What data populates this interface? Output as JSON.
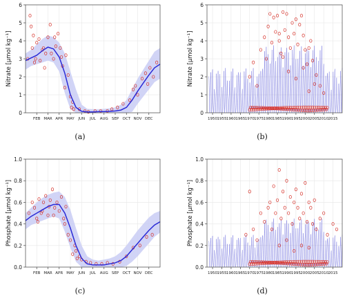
{
  "colors": {
    "band": "#c9cdf4",
    "line": "#2a2ad6",
    "points": "#d6322a",
    "grid": "#e6e6e6",
    "axis": "#444444",
    "ts_line": "#5a5ad8"
  },
  "chart_data": [
    {
      "id": "a",
      "type": "line",
      "caption": "(a)",
      "ylabel": "Nitrate [μmol kg⁻¹]",
      "ylim": [
        0,
        6
      ],
      "yticks": [
        0,
        1,
        2,
        3,
        4,
        5,
        6
      ],
      "xlim": [
        0,
        12
      ],
      "xtick_positions": [
        1,
        2,
        3,
        4,
        5,
        6,
        7,
        8,
        9,
        10,
        11
      ],
      "xtick_labels": [
        "FEB",
        "MAR",
        "APR",
        "MAY",
        "JUN",
        "JUL",
        "AUG",
        "SEP",
        "OCT",
        "NOV",
        "DEC"
      ],
      "mean": {
        "x": [
          0,
          0.5,
          1,
          1.5,
          2,
          2.5,
          3,
          3.5,
          4,
          4.5,
          5,
          5.5,
          6,
          6.5,
          7,
          7.5,
          8,
          8.5,
          9,
          9.5,
          10,
          10.5,
          11,
          11.5,
          12
        ],
        "y": [
          2.9,
          3.05,
          3.2,
          3.45,
          3.65,
          3.55,
          3.1,
          2.2,
          1.0,
          0.3,
          0.08,
          0.05,
          0.05,
          0.06,
          0.07,
          0.08,
          0.1,
          0.15,
          0.3,
          0.7,
          1.2,
          1.65,
          2.1,
          2.5,
          2.7
        ]
      },
      "band_upper": [
        3.3,
        3.5,
        3.8,
        4.1,
        4.3,
        4.2,
        3.9,
        3.3,
        2.3,
        1.3,
        0.45,
        0.22,
        0.2,
        0.2,
        0.22,
        0.25,
        0.3,
        0.45,
        0.7,
        1.3,
        1.9,
        2.4,
        2.9,
        3.4,
        3.6
      ],
      "band_lower": [
        2.4,
        2.6,
        2.7,
        2.8,
        2.9,
        2.8,
        2.3,
        1.1,
        0.2,
        0.0,
        0.0,
        0.0,
        0.0,
        0.0,
        0.0,
        0.0,
        0.0,
        0.0,
        0.0,
        0.05,
        0.5,
        0.9,
        1.3,
        1.7,
        1.9
      ],
      "points": {
        "x": [
          0.2,
          0.4,
          0.6,
          0.8,
          0.7,
          1.0,
          1.2,
          1.3,
          1.5,
          1.6,
          1.8,
          2.0,
          2.2,
          2.3,
          2.5,
          2.7,
          2.9,
          3.1,
          3.3,
          3.5,
          3.6,
          3.8,
          4.0,
          4.1,
          4.3,
          4.2,
          0.5,
          0.9,
          1.7,
          2.6,
          3.2,
          4.8,
          5.3,
          5.6,
          6.2,
          6.7,
          7.3,
          7.7,
          8.2,
          8.7,
          9.3,
          9.6,
          10.0,
          10.4,
          10.7,
          11.1,
          11.4,
          11.7,
          10.9,
          9.8
        ],
        "y": [
          3.0,
          5.4,
          3.6,
          2.8,
          4.3,
          3.9,
          4.1,
          2.9,
          3.5,
          3.6,
          3.3,
          4.2,
          4.9,
          3.3,
          3.0,
          3.7,
          4.4,
          3.6,
          2.6,
          1.4,
          3.2,
          2.1,
          0.9,
          0.3,
          0.2,
          0.6,
          4.8,
          3.0,
          2.5,
          4.2,
          3.1,
          0.2,
          0.1,
          0.05,
          0.1,
          0.1,
          0.1,
          0.2,
          0.3,
          0.5,
          0.7,
          1.3,
          1.0,
          1.9,
          2.2,
          2.5,
          2.0,
          2.8,
          1.6,
          1.5
        ]
      }
    },
    {
      "id": "b",
      "type": "line",
      "caption": "(b)",
      "ylabel": "Nitrate [μmol kg⁻¹]",
      "ylim": [
        0,
        6
      ],
      "yticks": [
        0,
        1,
        2,
        3,
        4,
        5,
        6
      ],
      "xlim": [
        1947,
        2020
      ],
      "xtick_positions": [
        1950,
        1955,
        1960,
        1965,
        1970,
        1975,
        1980,
        1985,
        1990,
        1995,
        2000,
        2005,
        2010,
        2015
      ],
      "xtick_labels": [
        "1950",
        "1955",
        "1960",
        "1965",
        "1970",
        "1975",
        "1980",
        "1985",
        "1990",
        "1995",
        "2000",
        "2005",
        "2010",
        "2015"
      ],
      "seasonal_peak": 2.5,
      "series_start": 1948,
      "series_end": 2020,
      "points": {
        "x": [
          1970,
          1972,
          1974,
          1976,
          1978,
          1980,
          1981,
          1982,
          1983,
          1984,
          1985,
          1986,
          1987,
          1988,
          1989,
          1990,
          1991,
          1992,
          1993,
          1994,
          1995,
          1996,
          1997,
          1998,
          1999,
          2000,
          2001,
          2002,
          2003,
          2004,
          2005,
          2006,
          2008,
          2010,
          1979,
          1986,
          1988,
          1991,
          1995,
          1999,
          2002
        ],
        "y": [
          2.0,
          2.8,
          1.5,
          3.5,
          4.2,
          4.8,
          5.5,
          3.9,
          5.3,
          4.5,
          5.4,
          4.0,
          3.3,
          5.6,
          4.6,
          5.5,
          4.2,
          3.6,
          5.0,
          4.4,
          5.2,
          3.8,
          4.9,
          5.4,
          4.3,
          3.5,
          2.7,
          3.6,
          4.0,
          2.9,
          1.6,
          2.1,
          1.5,
          1.1,
          3.0,
          4.4,
          3.1,
          2.3,
          1.9,
          2.5,
          1.2
        ]
      }
    },
    {
      "id": "c",
      "type": "line",
      "caption": "(c)",
      "ylabel": "Phosphate [μmol kg⁻¹]",
      "ylim": [
        0,
        1
      ],
      "yticks": [
        0.0,
        0.2,
        0.4,
        0.6,
        0.8,
        1.0
      ],
      "xlim": [
        0,
        12
      ],
      "xtick_positions": [
        1,
        2,
        3,
        4,
        5,
        6,
        7,
        8,
        9,
        10,
        11
      ],
      "xtick_labels": [
        "FEB",
        "MAR",
        "APR",
        "MAY",
        "JUN",
        "JUL",
        "AUG",
        "SEP",
        "OCT",
        "NOV",
        "DEC"
      ],
      "mean": {
        "x": [
          0,
          0.5,
          1,
          1.5,
          2,
          2.5,
          3,
          3.5,
          4,
          4.5,
          5,
          5.5,
          6,
          6.5,
          7,
          7.5,
          8,
          8.5,
          9,
          9.5,
          10,
          10.5,
          11,
          11.5,
          12
        ],
        "y": [
          0.43,
          0.47,
          0.5,
          0.53,
          0.56,
          0.58,
          0.58,
          0.5,
          0.36,
          0.2,
          0.08,
          0.03,
          0.02,
          0.02,
          0.02,
          0.03,
          0.04,
          0.06,
          0.1,
          0.16,
          0.22,
          0.28,
          0.34,
          0.39,
          0.42
        ]
      },
      "band_upper": [
        0.5,
        0.55,
        0.6,
        0.64,
        0.67,
        0.69,
        0.7,
        0.65,
        0.53,
        0.36,
        0.2,
        0.1,
        0.07,
        0.06,
        0.07,
        0.08,
        0.1,
        0.14,
        0.2,
        0.27,
        0.34,
        0.4,
        0.46,
        0.5,
        0.52
      ],
      "band_lower": [
        0.35,
        0.39,
        0.41,
        0.43,
        0.45,
        0.47,
        0.45,
        0.33,
        0.18,
        0.05,
        0.0,
        0.0,
        0.0,
        0.0,
        0.0,
        0.0,
        0.0,
        0.0,
        0.01,
        0.05,
        0.1,
        0.16,
        0.22,
        0.28,
        0.32
      ],
      "points": {
        "x": [
          0.3,
          0.6,
          0.8,
          1.0,
          1.2,
          1.4,
          1.6,
          1.8,
          2.0,
          2.2,
          2.4,
          2.6,
          2.8,
          3.0,
          3.2,
          3.4,
          3.6,
          3.8,
          4.0,
          4.2,
          4.4,
          4.6,
          4.8,
          5.0,
          5.4,
          5.8,
          6.3,
          6.8,
          7.3,
          7.8,
          8.4,
          9.0,
          9.6,
          10.2,
          10.8,
          11.3,
          1.5,
          2.5,
          3.5,
          4.5,
          1.1,
          2.1
        ],
        "y": [
          0.5,
          0.6,
          0.55,
          0.45,
          0.63,
          0.5,
          0.6,
          0.66,
          0.48,
          0.62,
          0.72,
          0.55,
          0.6,
          0.52,
          0.65,
          0.45,
          0.56,
          0.3,
          0.25,
          0.12,
          0.2,
          0.08,
          0.1,
          0.07,
          0.05,
          0.04,
          0.03,
          0.03,
          0.04,
          0.03,
          0.05,
          0.1,
          0.18,
          0.2,
          0.28,
          0.3,
          0.52,
          0.48,
          0.4,
          0.15,
          0.42,
          0.56
        ]
      }
    },
    {
      "id": "d",
      "type": "line",
      "caption": "(d)",
      "ylabel": "Phosphate [μmol kg⁻¹]",
      "ylim": [
        0,
        1
      ],
      "yticks": [
        0.0,
        0.2,
        0.4,
        0.6,
        0.8,
        1.0
      ],
      "xlim": [
        1947,
        2020
      ],
      "xtick_positions": [
        1950,
        1955,
        1960,
        1965,
        1970,
        1975,
        1980,
        1985,
        1990,
        1995,
        2000,
        2005,
        2010,
        2015
      ],
      "xtick_labels": [
        "1950",
        "1955",
        "1960",
        "1965",
        "1970",
        "1975",
        "1980",
        "1985",
        "1990",
        "1995",
        "2000",
        "2005",
        "2010",
        "2015"
      ],
      "seasonal_peak": 0.3,
      "series_start": 1948,
      "series_end": 2020,
      "points": {
        "x": [
          1968,
          1970,
          1972,
          1974,
          1976,
          1978,
          1980,
          1981,
          1982,
          1983,
          1984,
          1985,
          1986,
          1987,
          1988,
          1989,
          1990,
          1991,
          1992,
          1993,
          1994,
          1995,
          1996,
          1997,
          1998,
          1999,
          2000,
          2001,
          2002,
          2003,
          2004,
          2005,
          2006,
          2008,
          2010,
          2012,
          2015,
          2017,
          1986,
          1990,
          1994,
          1998,
          2002
        ],
        "y": [
          0.3,
          0.7,
          0.35,
          0.25,
          0.5,
          0.42,
          0.55,
          0.6,
          0.35,
          0.75,
          0.5,
          0.62,
          0.9,
          0.45,
          0.7,
          0.55,
          0.8,
          0.5,
          0.65,
          0.4,
          0.6,
          0.72,
          0.55,
          0.45,
          0.68,
          0.5,
          0.78,
          0.42,
          0.6,
          0.55,
          0.4,
          0.62,
          0.35,
          0.45,
          0.5,
          0.3,
          0.4,
          0.35,
          0.2,
          0.25,
          0.15,
          0.2,
          0.18
        ]
      }
    }
  ]
}
